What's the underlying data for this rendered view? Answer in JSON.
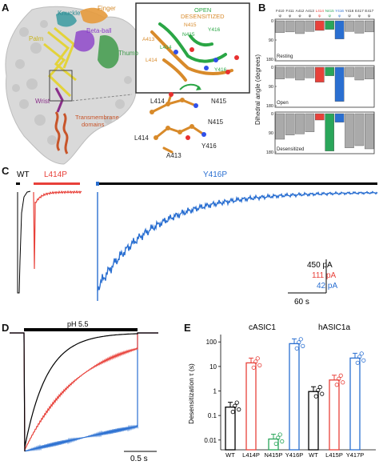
{
  "panelA": {
    "label": "A",
    "labels": {
      "knuckle": "Knuckle",
      "finger": "Finger",
      "palm": "Palm",
      "beta_ball": "Beta-ball",
      "thumb": "Thumb",
      "wrist": "Wrist",
      "tm1": "Transmembrane",
      "tm2": "domains"
    },
    "inset": {
      "open": "OPEN",
      "desensitized": "DESENSITIZED",
      "residues": [
        "A413",
        "L414",
        "N415",
        "Y416",
        "L414",
        "N415",
        "Y416"
      ]
    },
    "states": [
      {
        "state": "open",
        "residues": [
          "L414",
          "N415"
        ]
      },
      {
        "state": "desensitized",
        "residues": [
          "A413",
          "N415",
          "L414",
          "N415",
          "A413",
          "Y416",
          "L414"
        ]
      }
    ]
  },
  "panelB": {
    "label": "B",
    "ylabel": "Dihedral angle (degrees)",
    "residue_labels": [
      "F410 ψ",
      "F411 φ",
      "A412 φ",
      "A413 ψ",
      "L414 ψ",
      "N415 ψ",
      "Y416 φ",
      "Y416 ψ",
      "E417 φ",
      "E417 ψ"
    ],
    "colors": {
      "L414": "#e8413a",
      "N415": "#2aa65a",
      "Y416": "#2a6fd1",
      "other": "#aaaaaa"
    },
    "yticks": [
      "0",
      "90",
      "180"
    ],
    "subpanels": [
      {
        "name": "Resting",
        "values": [
          55,
          52,
          60,
          50,
          45,
          40,
          85,
          50,
          58,
          52
        ]
      },
      {
        "name": "Open",
        "values": [
          55,
          50,
          60,
          50,
          70,
          40,
          160,
          45,
          60,
          55
        ]
      },
      {
        "name": "Desensitized",
        "values": [
          120,
          100,
          95,
          85,
          30,
          175,
          40,
          160,
          150,
          165
        ]
      }
    ]
  },
  "panelC": {
    "label": "C",
    "traces": [
      {
        "name": "WT",
        "color": "#000000",
        "bar_label": "WT"
      },
      {
        "name": "L414P",
        "color": "#e8413a",
        "bar_label": "L414P"
      },
      {
        "name": "Y416P",
        "color": "#2a6fd1",
        "bar_label": "Y416P"
      }
    ],
    "scale": {
      "current_wt": "450 pA",
      "current_l414p": "111 pA",
      "current_y416p": "42 pA",
      "time": "60 s"
    }
  },
  "panelD": {
    "label": "D",
    "bar_label": "pH 5.5",
    "time_scale": "0.5 s",
    "colors": {
      "wt": "#000000",
      "l414p": "#e8413a",
      "y416p": "#2a6fd1"
    }
  },
  "panelE": {
    "label": "E",
    "ylabel": "Desensitization τ (s)",
    "yticks": [
      "0.01",
      "0.1",
      "1",
      "10",
      "100"
    ],
    "groups": [
      {
        "title": "cASIC1",
        "bars": [
          {
            "name": "WT",
            "value": 0.22,
            "color": "#000000"
          },
          {
            "name": "L414P",
            "value": 14,
            "color": "#e8413a"
          },
          {
            "name": "N415P",
            "value": 0.011,
            "color": "#2aa65a"
          },
          {
            "name": "Y416P",
            "value": 85,
            "color": "#2a6fd1"
          }
        ]
      },
      {
        "title": "hASIC1a",
        "bars": [
          {
            "name": "WT",
            "value": 0.95,
            "color": "#000000"
          },
          {
            "name": "L415P",
            "value": 2.8,
            "color": "#e8413a"
          },
          {
            "name": "Y417P",
            "value": 22,
            "color": "#2a6fd1"
          }
        ]
      }
    ]
  }
}
